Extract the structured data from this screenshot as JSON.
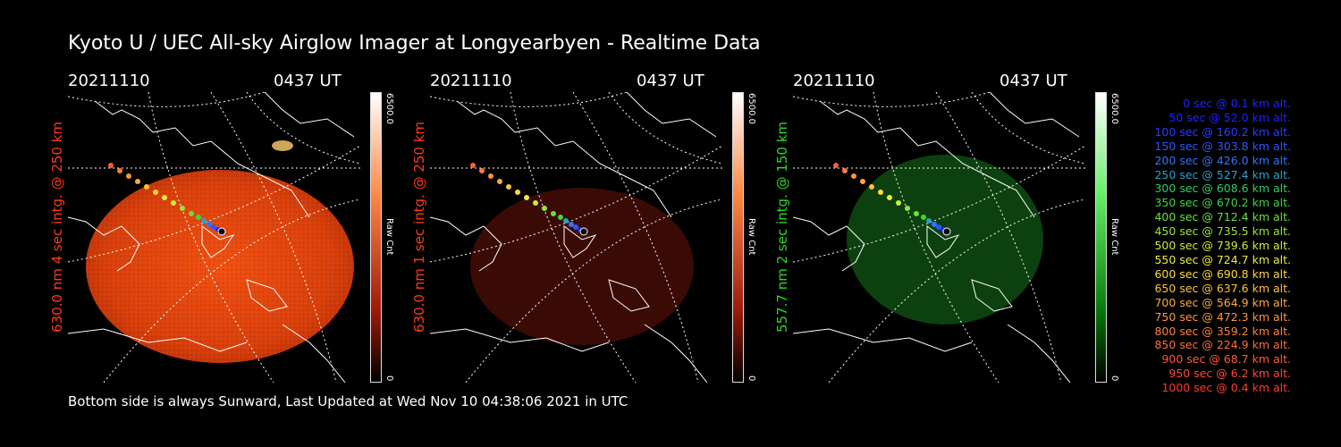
{
  "title": "Kyoto U / UEC All-sky Airglow Imager at Longyearbyen - Realtime Data",
  "panels": [
    {
      "date": "20211110",
      "time": "0437 UT",
      "side_label": "630.0 nm 4 sec intg. @ 250 km",
      "side_color": "#ff3a1a",
      "cbar_max": "6500.0",
      "cbar_min": "0",
      "cbar_unit": "Raw Cnt",
      "theme": "red-bright"
    },
    {
      "date": "20211110",
      "time": "0437 UT",
      "side_label": "630.0 nm 1 sec intg. @ 250 km",
      "side_color": "#ff3a1a",
      "cbar_max": "6500.0",
      "cbar_min": "0",
      "cbar_unit": "Raw Cnt",
      "theme": "red-dim"
    },
    {
      "date": "20211110",
      "time": "0437 UT",
      "side_label": "557.7 nm 2 sec intg. @ 150 km",
      "side_color": "#2bd82b",
      "cbar_max": "6500.0",
      "cbar_min": "0",
      "cbar_unit": "Raw Cnt",
      "theme": "green"
    }
  ],
  "legend": [
    {
      "text": "0 sec @    0.1 km alt.",
      "color": "#2222ff"
    },
    {
      "text": "50 sec @   52.0 km alt.",
      "color": "#2222ff"
    },
    {
      "text": "100 sec @  160.2 km alt.",
      "color": "#2a3cff"
    },
    {
      "text": "150 sec @  303.8 km alt.",
      "color": "#2f56ff"
    },
    {
      "text": "200 sec @  426.0 km alt.",
      "color": "#2f74ff"
    },
    {
      "text": "250 sec @  527.4 km alt.",
      "color": "#2aa0c8"
    },
    {
      "text": "300 sec @  608.6 km alt.",
      "color": "#2ecc66"
    },
    {
      "text": "350 sec @  670.2 km alt.",
      "color": "#3cd83c"
    },
    {
      "text": "400 sec @  712.4 km alt.",
      "color": "#68e03a"
    },
    {
      "text": "450 sec @  735.5 km alt.",
      "color": "#9ae43a"
    },
    {
      "text": "500 sec @  739.6 km alt.",
      "color": "#c8ec3a"
    },
    {
      "text": "550 sec @  724.7 km alt.",
      "color": "#ecec40"
    },
    {
      "text": "600 sec @  690.8 km alt.",
      "color": "#ffd83c"
    },
    {
      "text": "650 sec @  637.6 km alt.",
      "color": "#ffc03c"
    },
    {
      "text": "700 sec @  564.9 km alt.",
      "color": "#ffa83c"
    },
    {
      "text": "750 sec @  472.3 km alt.",
      "color": "#ff943c"
    },
    {
      "text": "800 sec @  359.2 km alt.",
      "color": "#ff803a"
    },
    {
      "text": "850 sec @  224.9 km alt.",
      "color": "#ff6c3a"
    },
    {
      "text": "900 sec @   68.7 km alt.",
      "color": "#ff5a36"
    },
    {
      "text": "950 sec @    6.2 km alt.",
      "color": "#ff4a32"
    },
    {
      "text": "1000 sec @    0.4 km alt.",
      "color": "#ff3a2e"
    }
  ],
  "footer": "Bottom side is always Sunward, Last Updated at Wed Nov 10 04:38:06 2021 in UTC"
}
